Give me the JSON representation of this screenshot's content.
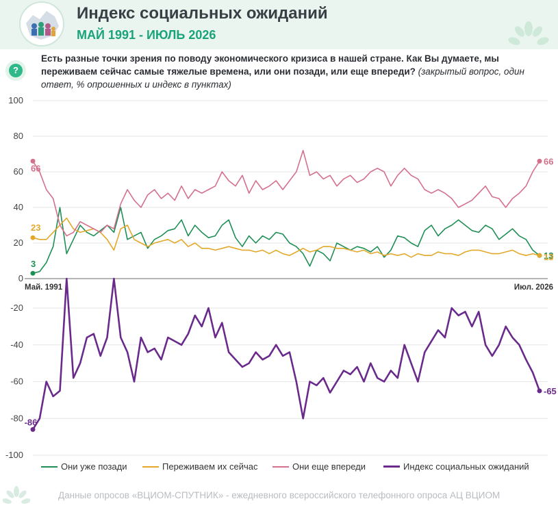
{
  "header": {
    "title": "Индекс социальных ожиданий",
    "subtitle": "МАЙ 1991 - ИЮЛЬ 2026"
  },
  "question": {
    "bold": "Есть разные точки зрения по поводу экономического кризиса в нашей стране. Как Вы думаете, мы переживаем сейчас самые тяжелые времена, или они позади, или еще впереди?",
    "italic": "(закрытый вопрос, один ответ, % опрошенных и индекс в пунктах)"
  },
  "footer": "Данные опросов «ВЦИОМ-СПУТНИК» - ежедневного всероссийского телефонного опроса АЦ ВЦИОМ",
  "colors": {
    "behind": "#1e8f55",
    "now": "#e3a82a",
    "ahead": "#d4708c",
    "index": "#6a2a8c",
    "header_bg": "#eaf5ef",
    "accent": "#1aa37a"
  },
  "icons": [
    "question-icon",
    "logo-icon",
    "leaf-decoration-icon"
  ],
  "chart_data": [
    {
      "type": "line",
      "x_labels": [
        "Май. 1991",
        "Июл. 2026"
      ],
      "yticks": [
        0,
        20,
        40,
        60,
        80,
        100
      ],
      "ylim": [
        0,
        100
      ],
      "grid": true,
      "series": [
        {
          "name": "Они уже позади",
          "color": "#1e8f55",
          "start_label": "3",
          "end_label": "13",
          "values": [
            3,
            4,
            9,
            18,
            40,
            14,
            22,
            30,
            26,
            24,
            27,
            30,
            26,
            40,
            22,
            24,
            26,
            17,
            22,
            24,
            27,
            28,
            33,
            24,
            30,
            26,
            23,
            24,
            30,
            33,
            23,
            18,
            24,
            20,
            24,
            22,
            26,
            25,
            20,
            18,
            14,
            7,
            16,
            14,
            10,
            20,
            18,
            16,
            18,
            17,
            15,
            18,
            12,
            16,
            24,
            23,
            20,
            18,
            27,
            30,
            24,
            28,
            30,
            33,
            30,
            27,
            26,
            30,
            28,
            22,
            25,
            28,
            24,
            22,
            16,
            13
          ]
        },
        {
          "name": "Переживаем их сейчас",
          "color": "#e3a82a",
          "start_label": "23",
          "end_label": "13",
          "values": [
            23,
            22,
            22,
            26,
            30,
            34,
            28,
            26,
            27,
            28,
            26,
            22,
            16,
            28,
            30,
            22,
            20,
            18,
            20,
            21,
            22,
            20,
            22,
            18,
            20,
            17,
            17,
            16,
            17,
            18,
            17,
            16,
            16,
            15,
            16,
            14,
            16,
            14,
            13,
            15,
            17,
            15,
            16,
            18,
            18,
            17,
            17,
            16,
            15,
            16,
            14,
            15,
            13,
            14,
            13,
            14,
            12,
            14,
            13,
            13,
            15,
            14,
            14,
            13,
            15,
            16,
            16,
            15,
            14,
            14,
            15,
            16,
            14,
            13,
            14,
            13
          ]
        },
        {
          "name": "Они еще впереди",
          "color": "#d4708c",
          "start_label": "66",
          "end_label": "66",
          "values": [
            66,
            60,
            50,
            45,
            30,
            24,
            26,
            32,
            30,
            28,
            26,
            30,
            28,
            42,
            50,
            44,
            40,
            47,
            50,
            45,
            48,
            44,
            52,
            45,
            50,
            48,
            50,
            52,
            60,
            55,
            52,
            58,
            48,
            55,
            50,
            52,
            55,
            50,
            55,
            60,
            72,
            58,
            60,
            56,
            58,
            52,
            56,
            58,
            54,
            56,
            60,
            62,
            60,
            52,
            58,
            62,
            58,
            56,
            50,
            48,
            50,
            48,
            45,
            40,
            42,
            44,
            48,
            52,
            46,
            45,
            40,
            45,
            48,
            52,
            60,
            66
          ]
        }
      ]
    },
    {
      "type": "line",
      "x_labels": [],
      "yticks": [
        -100,
        -80,
        -60,
        -40,
        -20
      ],
      "ylim": [
        -100,
        -4
      ],
      "grid": true,
      "series": [
        {
          "name": "Индекс социальных ожиданий",
          "color": "#6a2a8c",
          "start_label": "-86",
          "end_label": "-65",
          "values": [
            -86,
            -80,
            -60,
            -68,
            -65,
            -4,
            -58,
            -50,
            -36,
            -34,
            -46,
            -36,
            -4,
            -36,
            -44,
            -60,
            -36,
            -44,
            -42,
            -48,
            -36,
            -38,
            -40,
            -34,
            -24,
            -30,
            -20,
            -36,
            -28,
            -44,
            -48,
            -52,
            -50,
            -44,
            -48,
            -46,
            -40,
            -46,
            -44,
            -60,
            -80,
            -60,
            -62,
            -58,
            -66,
            -60,
            -54,
            -56,
            -52,
            -60,
            -50,
            -58,
            -60,
            -54,
            -58,
            -40,
            -50,
            -60,
            -44,
            -38,
            -32,
            -36,
            -20,
            -24,
            -22,
            -30,
            -22,
            -40,
            -46,
            -40,
            -30,
            -36,
            -40,
            -48,
            -55,
            -65
          ]
        }
      ]
    }
  ]
}
